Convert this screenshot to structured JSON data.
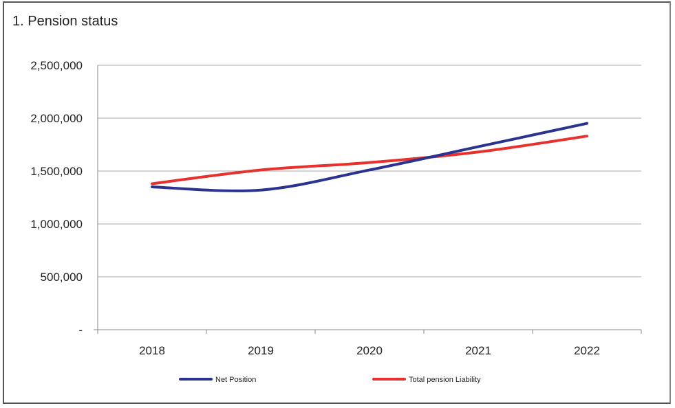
{
  "chart_data": {
    "type": "line",
    "title": "1. Pension status",
    "categories": [
      "2018",
      "2019",
      "2020",
      "2021",
      "2022"
    ],
    "series": [
      {
        "name": "Net Position",
        "color": "#2b3391",
        "values": [
          1350000,
          1320000,
          1510000,
          1730000,
          1950000
        ]
      },
      {
        "name": "Total pension Liability",
        "color": "#e8302d",
        "values": [
          1380000,
          1510000,
          1580000,
          1680000,
          1830000
        ]
      }
    ],
    "yticks": [
      "-",
      "500,000",
      "1,000,000",
      "1,500,000",
      "2,000,000",
      "2,500,000"
    ],
    "ylim": [
      0,
      2500000
    ],
    "grid": true,
    "legend_position": "bottom",
    "smooth": true
  }
}
